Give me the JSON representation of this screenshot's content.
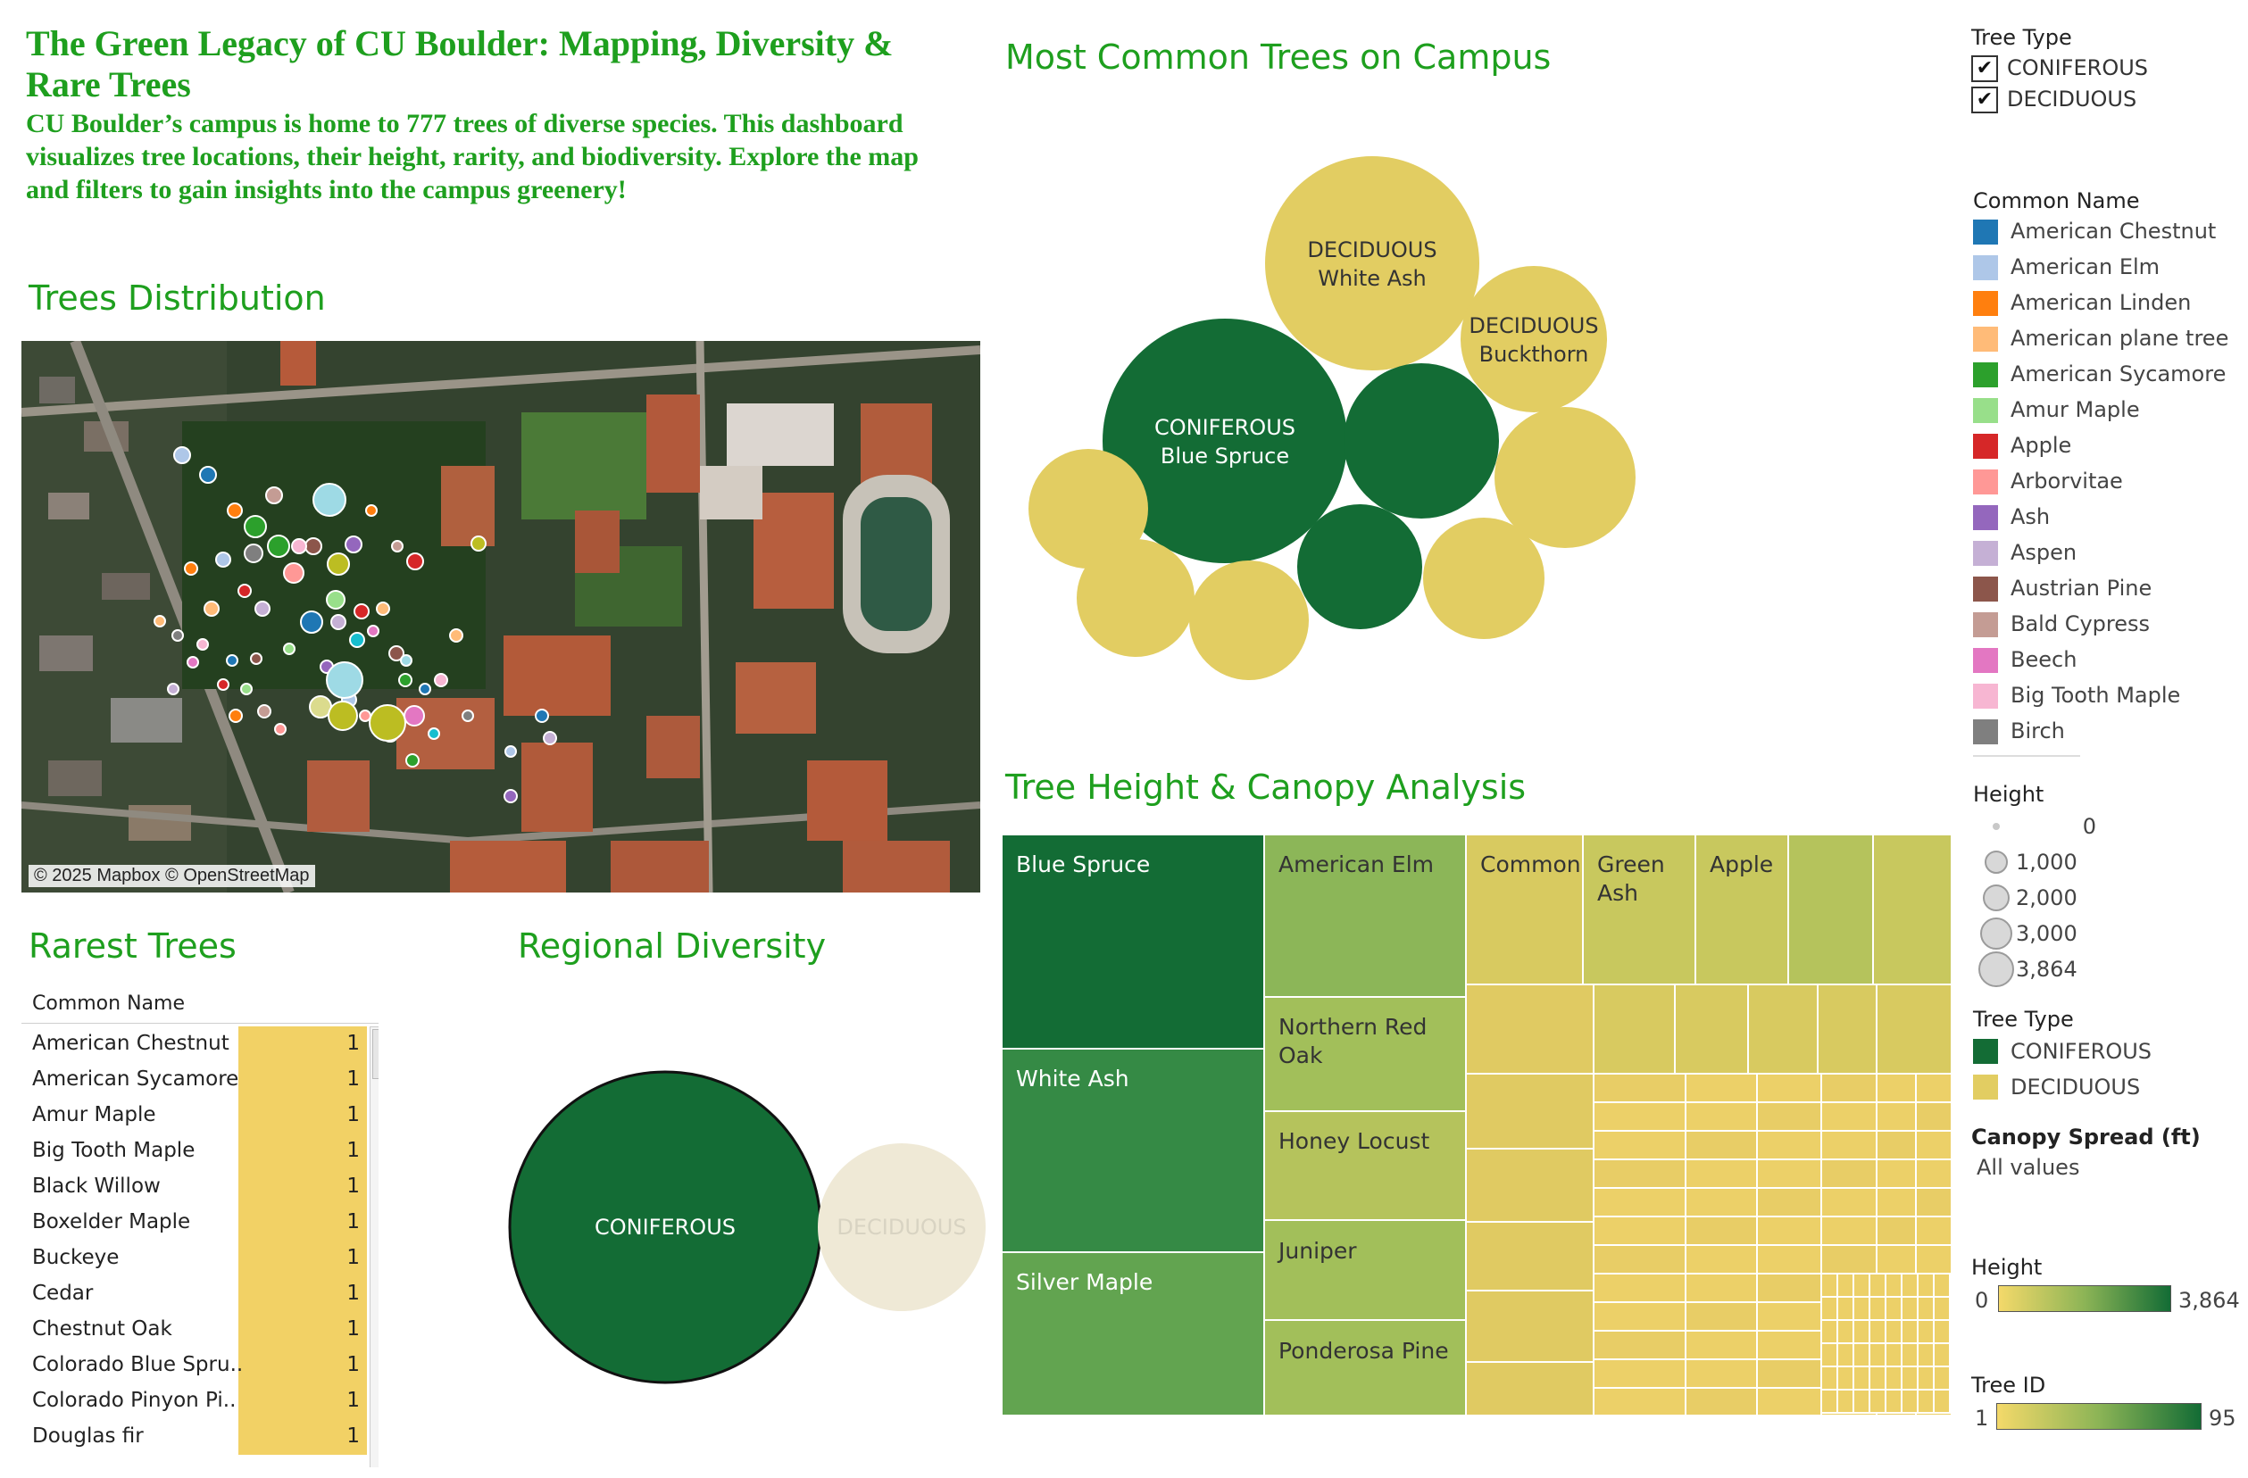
{
  "header": {
    "title": "The Green Legacy of CU Boulder: Mapping, Diversity & Rare Trees",
    "subtitle": "CU Boulder’s campus is home to 777 trees of diverse species. This dashboard visualizes tree locations, their height, rarity, and biodiversity. Explore the map and filters to gain insights into the campus greenery!"
  },
  "sections": {
    "distribution": "Trees Distribution",
    "common": "Most Common Trees on Campus",
    "rarest": "Rarest Trees",
    "regional": "Regional Diversity",
    "height_canopy": "Tree Height & Canopy Analysis"
  },
  "map": {
    "attribution": "© 2025 Mapbox © OpenStreetMap"
  },
  "rare_table": {
    "header": "Common Name",
    "rows": [
      {
        "name": "American Chestnut",
        "value": "1"
      },
      {
        "name": "American Sycamore",
        "value": "1"
      },
      {
        "name": "Amur Maple",
        "value": "1"
      },
      {
        "name": "Big Tooth Maple",
        "value": "1"
      },
      {
        "name": "Black Willow",
        "value": "1"
      },
      {
        "name": "Boxelder Maple",
        "value": "1"
      },
      {
        "name": "Buckeye",
        "value": "1"
      },
      {
        "name": "Cedar",
        "value": "1"
      },
      {
        "name": "Chestnut Oak",
        "value": "1"
      },
      {
        "name": "Colorado Blue Spru..",
        "value": "1"
      },
      {
        "name": "Colorado Pinyon Pi..",
        "value": "1"
      },
      {
        "name": "Douglas fir",
        "value": "1"
      }
    ]
  },
  "bubbles": {
    "labels": {
      "blue_spruce": {
        "type": "CONIFEROUS",
        "name": "Blue Spruce"
      },
      "white_ash": {
        "type": "DECIDUOUS",
        "name": "White Ash"
      },
      "buckthorn": {
        "type": "DECIDUOUS",
        "name": "Buckthorn"
      }
    }
  },
  "regional": {
    "coniferous": "CONIFEROUS",
    "deciduous": "DECIDUOUS"
  },
  "treemap_labels": {
    "blue_spruce": "Blue Spruce",
    "white_ash": "White Ash",
    "silver_maple": "Silver Maple",
    "american_elm": "American Elm",
    "northern_red_oak_1": "Northern Red",
    "northern_red_oak_2": "Oak",
    "honey_locust": "Honey Locust",
    "juniper": "Juniper",
    "ponderosa_pine": "Ponderosa Pine",
    "common": "Common",
    "green_ash_1": "Green",
    "green_ash_2": "Ash",
    "apple": "Apple"
  },
  "filters": {
    "tree_type_title": "Tree Type",
    "tree_type_options": [
      "CONIFEROUS",
      "DECIDUOUS"
    ],
    "checkmark": "✔"
  },
  "legend_common": {
    "title": "Common Name",
    "items": [
      {
        "label": "American Chestnut",
        "color": "#1f77b4"
      },
      {
        "label": "American Elm",
        "color": "#aec7e8"
      },
      {
        "label": "American Linden",
        "color": "#ff7f0e"
      },
      {
        "label": "American plane tree",
        "color": "#ffbb78"
      },
      {
        "label": "American Sycamore",
        "color": "#2ca02c"
      },
      {
        "label": "Amur Maple",
        "color": "#98df8a"
      },
      {
        "label": "Apple",
        "color": "#d62728"
      },
      {
        "label": "Arborvitae",
        "color": "#ff9896"
      },
      {
        "label": "Ash",
        "color": "#9467bd"
      },
      {
        "label": "Aspen",
        "color": "#c5b0d5"
      },
      {
        "label": "Austrian Pine",
        "color": "#8c564b"
      },
      {
        "label": "Bald Cypress",
        "color": "#c49c94"
      },
      {
        "label": "Beech",
        "color": "#e377c2"
      },
      {
        "label": "Big Tooth Maple",
        "color": "#f7b6d2"
      },
      {
        "label": "Birch",
        "color": "#7f7f7f"
      }
    ]
  },
  "legend_height_size": {
    "title": "Height",
    "items": [
      "0",
      "1,000",
      "2,000",
      "3,000",
      "3,864"
    ]
  },
  "legend_tree_type": {
    "title": "Tree Type",
    "items": [
      {
        "label": "CONIFEROUS",
        "color": "#136c35"
      },
      {
        "label": "DECIDUOUS",
        "color": "#e2cd62"
      }
    ]
  },
  "legend_canopy": {
    "title": "Canopy Spread (ft)",
    "value": "All values"
  },
  "legend_height_color": {
    "title": "Height",
    "min": "0",
    "max": "3,864"
  },
  "legend_tree_id": {
    "title": "Tree ID",
    "min": "1",
    "max": "95"
  },
  "colors": {
    "accent_green": "#1e9f1e",
    "coniferous": "#136c35",
    "deciduous": "#e2cd62",
    "deciduous_faded": "#efe9d6"
  }
}
